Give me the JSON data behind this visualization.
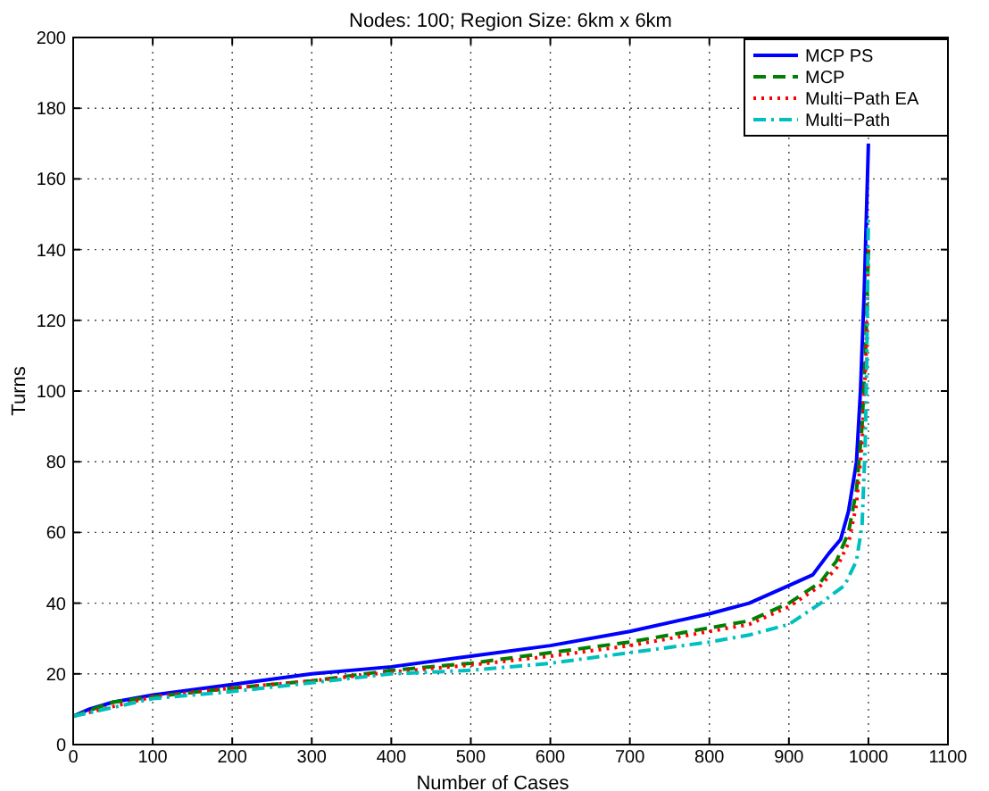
{
  "chart_data": {
    "type": "line",
    "title": "Nodes: 100; Region Size: 6km x 6km",
    "xlabel": "Number of Cases",
    "ylabel": "Turns",
    "xlim": [
      0,
      1100
    ],
    "xticks": [
      0,
      100,
      200,
      300,
      400,
      500,
      600,
      700,
      800,
      900,
      1000,
      1100
    ],
    "ylim": [
      0,
      200
    ],
    "yticks": [
      0,
      20,
      40,
      60,
      80,
      100,
      120,
      140,
      160,
      180,
      200
    ],
    "grid": true,
    "legend": "top right",
    "series": [
      {
        "name": "MCP PS",
        "color": "#0000ff",
        "line_style": "solid",
        "x": [
          0,
          20,
          50,
          100,
          200,
          300,
          400,
          500,
          600,
          700,
          800,
          850,
          900,
          930,
          950,
          965,
          975,
          985,
          990,
          995,
          1000
        ],
        "values": [
          8,
          10,
          12,
          14,
          17,
          20,
          22,
          25,
          28,
          32,
          37,
          40,
          45,
          48,
          54,
          58,
          66,
          80,
          100,
          130,
          170
        ]
      },
      {
        "name": "MCP",
        "color": "#008000",
        "line_style": "dashed",
        "x": [
          0,
          50,
          100,
          200,
          300,
          400,
          500,
          600,
          700,
          800,
          850,
          900,
          940,
          960,
          975,
          985,
          992,
          997,
          1000
        ],
        "values": [
          8,
          12,
          13.5,
          16,
          18,
          21,
          23,
          26,
          29,
          33,
          35,
          40,
          46,
          52,
          60,
          72,
          90,
          115,
          140
        ]
      },
      {
        "name": "Multi−Path EA",
        "color": "#ff0000",
        "line_style": "dotted",
        "x": [
          0,
          100,
          200,
          300,
          400,
          500,
          600,
          700,
          800,
          850,
          900,
          940,
          960,
          975,
          985,
          992,
          997,
          1000
        ],
        "values": [
          8,
          13.5,
          16,
          18,
          20.5,
          22.5,
          25,
          28,
          32,
          34,
          39,
          45,
          50,
          57,
          68,
          85,
          110,
          140
        ]
      },
      {
        "name": "Multi−Path",
        "color": "#00bfbf",
        "line_style": "dashdot",
        "x": [
          0,
          100,
          200,
          300,
          400,
          500,
          600,
          700,
          800,
          850,
          900,
          940,
          970,
          985,
          992,
          996,
          998,
          1000
        ],
        "values": [
          8,
          13,
          15,
          17.5,
          20,
          21,
          23,
          26,
          29,
          31,
          34,
          40,
          45,
          52,
          62,
          85,
          110,
          150
        ]
      }
    ]
  }
}
